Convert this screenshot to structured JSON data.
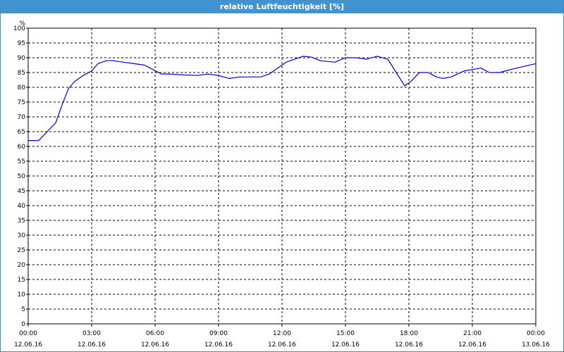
{
  "chart_data": {
    "type": "line",
    "title": "relative Luftfeuchtigkeit [%]",
    "ylabel": "%",
    "xlabel": "",
    "ylim": [
      0,
      100
    ],
    "y_ticks": [
      0,
      5,
      10,
      15,
      20,
      25,
      30,
      35,
      40,
      45,
      50,
      55,
      60,
      65,
      70,
      75,
      80,
      85,
      90,
      95,
      100
    ],
    "x_ticks": [
      {
        "time": "00:00",
        "date": "12.06.16"
      },
      {
        "time": "03:00",
        "date": "12.06.16"
      },
      {
        "time": "06:00",
        "date": "12.06.16"
      },
      {
        "time": "09:00",
        "date": "12.06.16"
      },
      {
        "time": "12:00",
        "date": "12.06.16"
      },
      {
        "time": "15:00",
        "date": "12.06.16"
      },
      {
        "time": "18:00",
        "date": "12.06.16"
      },
      {
        "time": "21:00",
        "date": "12.06.16"
      },
      {
        "time": "00:00",
        "date": "13.06.16"
      }
    ],
    "xlim_hours": [
      0,
      24
    ],
    "grid": true,
    "line_color": "#0000cc",
    "x_hours": [
      0,
      0.5,
      0.9,
      1.3,
      1.6,
      1.9,
      2.2,
      2.6,
      3.0,
      3.3,
      3.7,
      4.0,
      4.5,
      5.0,
      5.5,
      5.9,
      6.3,
      6.7,
      7.3,
      8.0,
      8.5,
      9.0,
      9.5,
      10.0,
      10.5,
      11.0,
      11.4,
      11.8,
      12.2,
      12.6,
      13.0,
      13.4,
      13.8,
      14.5,
      15.0,
      15.5,
      16.0,
      16.5,
      17.0,
      17.4,
      17.8,
      18.1,
      18.5,
      18.9,
      19.3,
      19.6,
      20.0,
      20.6,
      21.0,
      21.4,
      21.8,
      22.3,
      22.8,
      23.4,
      24.0
    ],
    "values": [
      62,
      62,
      65,
      68,
      74,
      79.5,
      82,
      84,
      85.5,
      88,
      89,
      89,
      88.5,
      88,
      87.5,
      86,
      84.5,
      84.5,
      84.2,
      84,
      84.5,
      84,
      83,
      83.5,
      83.5,
      83.5,
      84.5,
      86.5,
      88.5,
      89.5,
      90.5,
      90.2,
      89,
      88.5,
      90,
      90,
      89.5,
      90.5,
      89.5,
      85,
      80.5,
      82,
      85,
      85,
      83.5,
      83,
      83.5,
      85.5,
      86,
      86.5,
      85,
      85,
      86,
      87,
      88
    ]
  }
}
